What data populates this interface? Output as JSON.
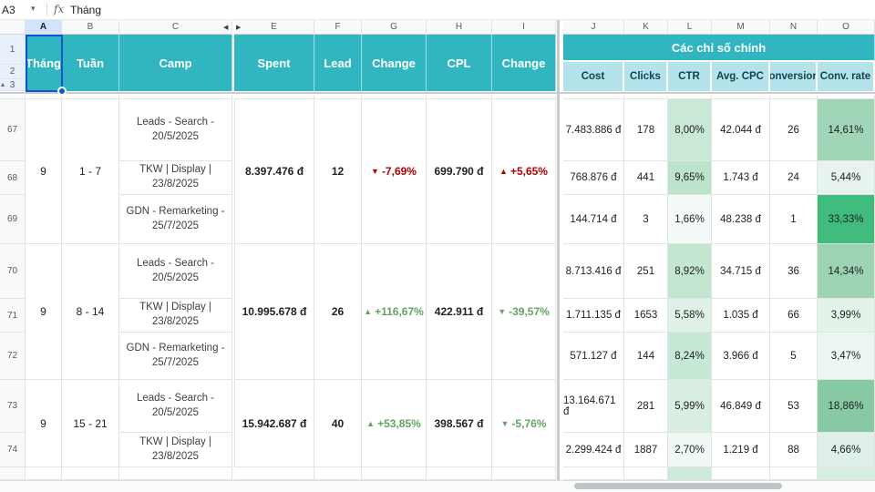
{
  "toolbar": {
    "name_box": "A3",
    "caret": "▾",
    "fx_label": "fx",
    "formula_value": "Tháng"
  },
  "column_letters": [
    "A",
    "B",
    "C",
    "E",
    "F",
    "G",
    "H",
    "I",
    "J",
    "K",
    "L",
    "M",
    "N",
    "O"
  ],
  "selected_column": "A",
  "collapse_arrows": {
    "left": "◀",
    "right": "▶",
    "row_group": "▴"
  },
  "frozen_row_numbers": [
    "1",
    "2",
    "3"
  ],
  "header": {
    "left_labels": [
      "Tháng",
      "Tuần",
      "Camp",
      "Spent",
      "Lead",
      "Change",
      "CPL",
      "Change"
    ],
    "right_title": "Các chỉ số chính",
    "right_sub_labels": [
      "Cost",
      "Clicks",
      "CTR",
      "Avg. CPC",
      "Conversions",
      "Conv. rate"
    ]
  },
  "colors": {
    "teal": "#31b5c0",
    "light_teal": "#b5e3eb",
    "negative_red": "#b10202",
    "positive_green": "#63a361",
    "selection_blue": "#0b57d0"
  },
  "groups": [
    {
      "row_numbers": [
        "67",
        "68",
        "69"
      ],
      "month": "9",
      "week": "1 - 7",
      "spent": "8.397.476 đ",
      "lead": "12",
      "lead_change": {
        "arrow": "▼",
        "text": "-7,69%",
        "color": "#b10202"
      },
      "cpl": "699.790 đ",
      "cpl_change": {
        "arrow": "▲",
        "text": "+5,65%",
        "color": "#b10202"
      },
      "campaigns": [
        {
          "name": "Leads - Search - 20/5/2025",
          "cost": "7.483.886 đ",
          "clicks": "178",
          "ctr": "8,00%",
          "ctr_bg": "#c9e8d6",
          "cpc": "42.044 đ",
          "conversions": "26",
          "rate": "14,61%",
          "rate_bg": "#a1d5b7"
        },
        {
          "name": "TKW | Display | 23/8/2025",
          "cost": "768.876 đ",
          "clicks": "441",
          "ctr": "9,65%",
          "ctr_bg": "#bce4cd",
          "cpc": "1.743 đ",
          "conversions": "24",
          "rate": "5,44%",
          "rate_bg": "#e7f4ed"
        },
        {
          "name": "GDN - Remarketing - 25/7/2025",
          "cost": "144.714 đ",
          "clicks": "3",
          "ctr": "1,66%",
          "ctr_bg": "#f4faf7",
          "cpc": "48.238 đ",
          "conversions": "1",
          "rate": "33,33%",
          "rate_bg": "#41bc7f"
        }
      ]
    },
    {
      "row_numbers": [
        "70",
        "71",
        "72"
      ],
      "month": "9",
      "week": "8 - 14",
      "spent": "10.995.678 đ",
      "lead": "26",
      "lead_change": {
        "arrow": "▲",
        "text": "+116,67%",
        "color": "#63a361"
      },
      "cpl": "422.911 đ",
      "cpl_change": {
        "arrow": "▼",
        "text": "-39,57%",
        "color": "#63a361"
      },
      "campaigns": [
        {
          "name": "Leads - Search - 20/5/2025",
          "cost": "8.713.416 đ",
          "clicks": "251",
          "ctr": "8,92%",
          "ctr_bg": "#c3e6d1",
          "cpc": "34.715 đ",
          "conversions": "36",
          "rate": "14,34%",
          "rate_bg": "#9cd3b3"
        },
        {
          "name": "TKW | Display | 23/8/2025",
          "cost": "1.711.135 đ",
          "clicks": "1653",
          "ctr": "5,58%",
          "ctr_bg": "#e1f1e8",
          "cpc": "1.035 đ",
          "conversions": "66",
          "rate": "3,99%",
          "rate_bg": "#e4f3ea"
        },
        {
          "name": "GDN - Remarketing - 25/7/2025",
          "cost": "571.127 đ",
          "clicks": "144",
          "ctr": "8,24%",
          "ctr_bg": "#c8e8d6",
          "cpc": "3.966 đ",
          "conversions": "5",
          "rate": "3,47%",
          "rate_bg": "#ecf7f1"
        }
      ]
    },
    {
      "row_numbers": [
        "73",
        "74"
      ],
      "month": "9",
      "week": "15 - 21",
      "spent": "15.942.687 đ",
      "lead": "40",
      "lead_change": {
        "arrow": "▲",
        "text": "+53,85%",
        "color": "#63a361"
      },
      "cpl": "398.567 đ",
      "cpl_change": {
        "arrow": "▼",
        "text": "-5,76%",
        "color": "#63a361"
      },
      "campaigns": [
        {
          "name": "Leads - Search - 20/5/2025",
          "cost": "13.164.671 đ",
          "clicks": "281",
          "ctr": "5,99%",
          "ctr_bg": "#d9eee3",
          "cpc": "46.849 đ",
          "conversions": "53",
          "rate": "18,86%",
          "rate_bg": "#86c9a4"
        },
        {
          "name": "TKW | Display | 23/8/2025",
          "cost": "2.299.424 đ",
          "clicks": "1887",
          "ctr": "2,70%",
          "ctr_bg": "#f0f8f3",
          "cpc": "1.219 đ",
          "conversions": "88",
          "rate": "4,66%",
          "rate_bg": "#def0e7"
        }
      ]
    }
  ],
  "partial_row": {
    "ctr_bg": "#cdebdb",
    "rate_bg": "#d7eee2"
  }
}
